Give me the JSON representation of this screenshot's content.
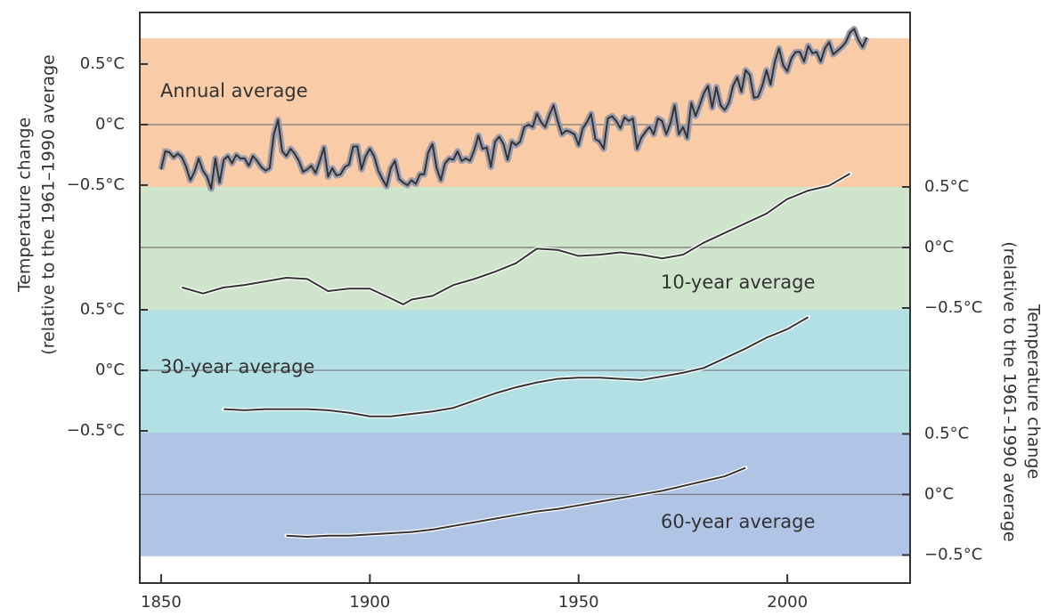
{
  "chart_data": [
    {
      "type": "line",
      "title": "Annual average",
      "ylabel": [
        "Temperature change",
        "(relative to the 1961–1990 average"
      ],
      "yaxis": "left",
      "background": "#f9cba6",
      "color": "#333333",
      "band_color": "#9c9cab",
      "zero_line": true,
      "xlim": [
        1844.9,
        2029.4
      ],
      "ylim": [
        -0.515,
        0.713
      ],
      "yticks": [
        {
          "value": 0.5,
          "label": "0.5°C"
        },
        {
          "value": 0,
          "label": "0°C"
        },
        {
          "value": -0.5,
          "label": "−0.5°C"
        }
      ],
      "x": [
        1850,
        1851,
        1852,
        1853,
        1854,
        1855,
        1856,
        1857,
        1858,
        1859,
        1860,
        1861,
        1862,
        1863,
        1864,
        1865,
        1866,
        1867,
        1868,
        1869,
        1870,
        1871,
        1872,
        1873,
        1874,
        1875,
        1876,
        1877,
        1878,
        1879,
        1880,
        1881,
        1882,
        1883,
        1884,
        1885,
        1886,
        1887,
        1888,
        1889,
        1890,
        1891,
        1892,
        1893,
        1894,
        1895,
        1896,
        1897,
        1898,
        1899,
        1900,
        1901,
        1902,
        1903,
        1904,
        1905,
        1906,
        1907,
        1908,
        1909,
        1910,
        1911,
        1912,
        1913,
        1914,
        1915,
        1916,
        1917,
        1918,
        1919,
        1920,
        1921,
        1922,
        1923,
        1924,
        1925,
        1926,
        1927,
        1928,
        1929,
        1930,
        1931,
        1932,
        1933,
        1934,
        1935,
        1936,
        1937,
        1938,
        1939,
        1940,
        1941,
        1942,
        1943,
        1944,
        1945,
        1946,
        1947,
        1948,
        1949,
        1950,
        1951,
        1952,
        1953,
        1954,
        1955,
        1956,
        1957,
        1958,
        1959,
        1960,
        1961,
        1962,
        1963,
        1964,
        1965,
        1966,
        1967,
        1968,
        1969,
        1970,
        1971,
        1972,
        1973,
        1974,
        1975,
        1976,
        1977,
        1978,
        1979,
        1980,
        1981,
        1982,
        1983,
        1984,
        1985,
        1986,
        1987,
        1988,
        1989,
        1990,
        1991,
        1992,
        1993,
        1994,
        1995,
        1996,
        1997,
        1998,
        1999,
        2000,
        2001,
        2002,
        2003,
        2004,
        2005,
        2006,
        2007,
        2008,
        2009,
        2010,
        2011,
        2012,
        2013,
        2014,
        2015,
        2016,
        2017,
        2018,
        2019
      ],
      "values": [
        -0.37,
        -0.22,
        -0.23,
        -0.27,
        -0.24,
        -0.27,
        -0.35,
        -0.46,
        -0.39,
        -0.28,
        -0.38,
        -0.43,
        -0.53,
        -0.28,
        -0.48,
        -0.29,
        -0.26,
        -0.32,
        -0.25,
        -0.28,
        -0.28,
        -0.34,
        -0.26,
        -0.3,
        -0.35,
        -0.38,
        -0.36,
        -0.08,
        0.04,
        -0.22,
        -0.26,
        -0.2,
        -0.24,
        -0.3,
        -0.39,
        -0.37,
        -0.34,
        -0.4,
        -0.3,
        -0.19,
        -0.43,
        -0.36,
        -0.42,
        -0.41,
        -0.35,
        -0.33,
        -0.18,
        -0.18,
        -0.37,
        -0.26,
        -0.2,
        -0.26,
        -0.38,
        -0.45,
        -0.51,
        -0.36,
        -0.3,
        -0.45,
        -0.48,
        -0.5,
        -0.46,
        -0.49,
        -0.41,
        -0.41,
        -0.23,
        -0.16,
        -0.36,
        -0.46,
        -0.32,
        -0.28,
        -0.29,
        -0.22,
        -0.3,
        -0.28,
        -0.3,
        -0.21,
        -0.09,
        -0.2,
        -0.19,
        -0.35,
        -0.14,
        -0.1,
        -0.16,
        -0.29,
        -0.14,
        -0.17,
        -0.14,
        -0.02,
        0.0,
        -0.02,
        0.09,
        0.02,
        -0.02,
        0.08,
        0.16,
        0.03,
        -0.08,
        -0.05,
        -0.06,
        -0.08,
        -0.17,
        -0.03,
        0.02,
        0.09,
        -0.12,
        -0.14,
        -0.2,
        0.05,
        0.07,
        0.03,
        -0.03,
        0.06,
        0.03,
        0.05,
        -0.2,
        -0.11,
        -0.06,
        -0.02,
        -0.08,
        0.05,
        0.03,
        -0.08,
        0.01,
        0.16,
        -0.08,
        -0.02,
        -0.11,
        0.18,
        0.07,
        0.16,
        0.26,
        0.32,
        0.14,
        0.31,
        0.16,
        0.12,
        0.18,
        0.32,
        0.39,
        0.27,
        0.45,
        0.41,
        0.22,
        0.23,
        0.32,
        0.45,
        0.33,
        0.52,
        0.63,
        0.49,
        0.44,
        0.55,
        0.6,
        0.6,
        0.52,
        0.65,
        0.59,
        0.6,
        0.52,
        0.63,
        0.68,
        0.58,
        0.61,
        0.64,
        0.68,
        0.76,
        0.79,
        0.7,
        0.64,
        0.72
      ]
    },
    {
      "type": "line",
      "title": "10-year average",
      "ylabel": [
        "Temperature change",
        "(relative to the 1961–1990 average"
      ],
      "yaxis": "right",
      "background": "#cfe5cb",
      "color": "#333333",
      "zero_line": true,
      "xlim": [
        1844.9,
        2029.4
      ],
      "ylim": [
        -0.515,
        0.5
      ],
      "yticks": [
        {
          "value": 0.5,
          "label": "0.5°C"
        },
        {
          "value": 0,
          "label": "0°C"
        },
        {
          "value": -0.5,
          "label": "−0.5°C"
        }
      ],
      "x": [
        1855,
        1860,
        1865,
        1870,
        1875,
        1880,
        1885,
        1890,
        1895,
        1900,
        1905,
        1908,
        1910,
        1915,
        1920,
        1925,
        1930,
        1935,
        1940,
        1945,
        1950,
        1955,
        1960,
        1965,
        1970,
        1975,
        1980,
        1985,
        1990,
        1995,
        2000,
        2005,
        2010,
        2015
      ],
      "values": [
        -0.33,
        -0.38,
        -0.33,
        -0.31,
        -0.28,
        -0.25,
        -0.26,
        -0.36,
        -0.34,
        -0.34,
        -0.42,
        -0.47,
        -0.43,
        -0.4,
        -0.31,
        -0.26,
        -0.2,
        -0.13,
        -0.01,
        -0.02,
        -0.07,
        -0.06,
        -0.04,
        -0.06,
        -0.09,
        -0.06,
        0.04,
        0.12,
        0.2,
        0.28,
        0.4,
        0.47,
        0.51,
        0.61
      ]
    },
    {
      "type": "line",
      "title": "30-year average",
      "yaxis": "left",
      "background": "#b2e0e4",
      "color": "#333333",
      "zero_line": true,
      "xlim": [
        1844.9,
        2029.4
      ],
      "ylim": [
        -0.515,
        0.5
      ],
      "yticks": [
        {
          "value": 0.5,
          "label": "0.5°C"
        },
        {
          "value": 0,
          "label": "0°C"
        },
        {
          "value": -0.5,
          "label": "−0.5°C"
        }
      ],
      "x": [
        1865,
        1870,
        1875,
        1880,
        1885,
        1890,
        1895,
        1900,
        1905,
        1910,
        1915,
        1920,
        1925,
        1930,
        1935,
        1940,
        1945,
        1950,
        1955,
        1960,
        1965,
        1970,
        1975,
        1980,
        1985,
        1990,
        1995,
        2000,
        2005
      ],
      "values": [
        -0.32,
        -0.33,
        -0.32,
        -0.32,
        -0.32,
        -0.33,
        -0.35,
        -0.38,
        -0.38,
        -0.36,
        -0.34,
        -0.31,
        -0.25,
        -0.19,
        -0.14,
        -0.1,
        -0.07,
        -0.06,
        -0.06,
        -0.07,
        -0.08,
        -0.05,
        -0.02,
        0.02,
        0.1,
        0.18,
        0.27,
        0.34,
        0.44
      ]
    },
    {
      "type": "line",
      "title": "60-year average",
      "yaxis": "right",
      "background": "#b0c4e6",
      "color": "#333333",
      "zero_line": true,
      "xlim": [
        1844.9,
        2029.4
      ],
      "ylim": [
        -0.51,
        0.51
      ],
      "yticks": [
        {
          "value": 0.5,
          "label": "0.5°C"
        },
        {
          "value": 0,
          "label": "0°C"
        },
        {
          "value": -0.5,
          "label": "−0.5°C"
        }
      ],
      "xticks": [
        1850,
        1900,
        1950,
        2000
      ],
      "x": [
        1880,
        1885,
        1890,
        1895,
        1900,
        1905,
        1910,
        1915,
        1920,
        1925,
        1930,
        1935,
        1940,
        1945,
        1950,
        1955,
        1960,
        1965,
        1970,
        1975,
        1980,
        1985,
        1990
      ],
      "values": [
        -0.34,
        -0.35,
        -0.34,
        -0.34,
        -0.33,
        -0.32,
        -0.31,
        -0.29,
        -0.26,
        -0.23,
        -0.2,
        -0.17,
        -0.14,
        -0.12,
        -0.09,
        -0.06,
        -0.03,
        0.0,
        0.03,
        0.07,
        0.11,
        0.15,
        0.22
      ]
    }
  ]
}
